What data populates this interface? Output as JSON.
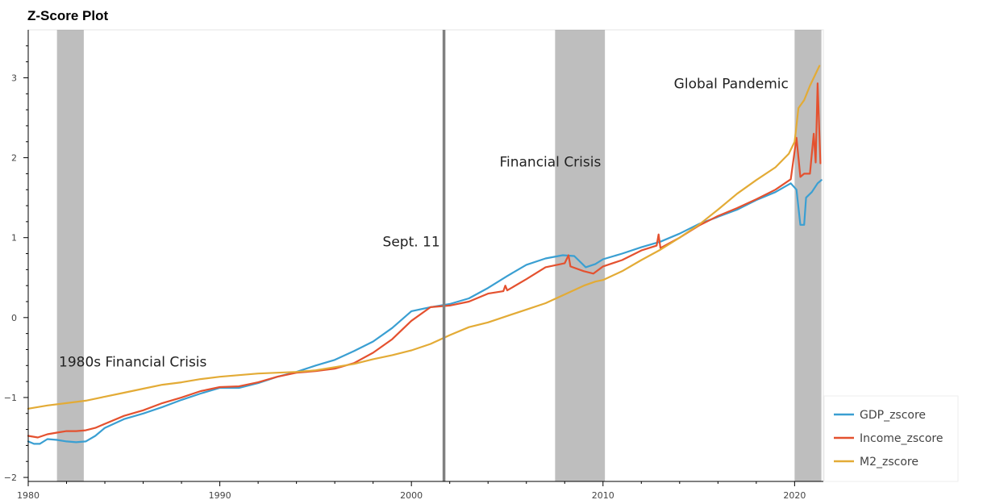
{
  "chart_data": {
    "type": "line",
    "title": "Z-Score Plot",
    "xlabel": "",
    "ylabel": "",
    "xlim": [
      1980,
      2021.5
    ],
    "ylim": [
      -2.05,
      3.6
    ],
    "x_ticks": [
      1980,
      1990,
      2000,
      2010,
      2020
    ],
    "x_tick_labels": [
      "1980",
      "1990",
      "2000",
      "2010",
      "2020"
    ],
    "y_ticks": [
      -2,
      -1,
      0,
      1,
      2,
      3
    ],
    "y_tick_labels": [
      "−2",
      "−1",
      "0",
      "1",
      "2",
      "3"
    ],
    "grid": false,
    "legend_position": "bottom-right",
    "shaded_regions": [
      {
        "x0": 1981.5,
        "x1": 1982.9
      },
      {
        "x0": 2007.5,
        "x1": 2010.1
      },
      {
        "x0": 2020.0,
        "x1": 2021.4
      }
    ],
    "vertical_lines": [
      {
        "x": 2001.7
      }
    ],
    "annotations": [
      {
        "text": "1980s Financial Crisis",
        "x": 1981.6,
        "y": -0.55
      },
      {
        "text": "Sept. 11",
        "x": 1998.5,
        "y": 0.95
      },
      {
        "text": "Financial Crisis",
        "x": 2004.6,
        "y": 1.95
      },
      {
        "text": "Global Pandemic",
        "x": 2013.7,
        "y": 2.93
      }
    ],
    "series": [
      {
        "name": "GDP_zscore",
        "color": "#3a9fd2",
        "x": [
          1980,
          1980.3,
          1980.6,
          1981,
          1981.5,
          1982,
          1982.5,
          1983,
          1983.5,
          1984,
          1985,
          1986,
          1987,
          1988,
          1989,
          1990,
          1991,
          1992,
          1993,
          1994,
          1995,
          1996,
          1997,
          1998,
          1999,
          2000,
          2001,
          2002,
          2003,
          2004,
          2005,
          2006,
          2007,
          2007.9,
          2008.5,
          2009.1,
          2009.6,
          2010,
          2011,
          2012,
          2013,
          2014,
          2015,
          2016,
          2017,
          2018,
          2019,
          2019.8,
          2020.1,
          2020.3,
          2020.5,
          2020.6,
          2020.9,
          2021.2,
          2021.4
        ],
        "y": [
          -1.55,
          -1.58,
          -1.58,
          -1.52,
          -1.53,
          -1.55,
          -1.56,
          -1.55,
          -1.48,
          -1.38,
          -1.27,
          -1.2,
          -1.12,
          -1.03,
          -0.95,
          -0.88,
          -0.88,
          -0.82,
          -0.74,
          -0.68,
          -0.6,
          -0.53,
          -0.42,
          -0.3,
          -0.13,
          0.08,
          0.13,
          0.17,
          0.24,
          0.37,
          0.52,
          0.66,
          0.74,
          0.78,
          0.77,
          0.63,
          0.67,
          0.73,
          0.8,
          0.88,
          0.95,
          1.05,
          1.17,
          1.26,
          1.35,
          1.47,
          1.57,
          1.68,
          1.6,
          1.16,
          1.16,
          1.5,
          1.57,
          1.68,
          1.72
        ]
      },
      {
        "name": "Income_zscore",
        "color": "#e4512f",
        "x": [
          1980,
          1980.5,
          1981,
          1981.5,
          1982,
          1982.5,
          1983,
          1983.5,
          1984,
          1985,
          1986,
          1987,
          1988,
          1989,
          1990,
          1991,
          1992,
          1993,
          1994,
          1995,
          1996,
          1997,
          1998,
          1999,
          2000,
          2001,
          2002,
          2003,
          2004,
          2004.8,
          2004.9,
          2005,
          2006,
          2007,
          2008,
          2008.2,
          2008.3,
          2009,
          2009.5,
          2010,
          2011,
          2012,
          2012.8,
          2012.9,
          2013,
          2014,
          2015,
          2016,
          2017,
          2018,
          2019,
          2019.8,
          2020.1,
          2020.3,
          2020.5,
          2020.8,
          2021.0,
          2021.1,
          2021.2,
          2021.35
        ],
        "y": [
          -1.48,
          -1.5,
          -1.46,
          -1.44,
          -1.42,
          -1.42,
          -1.41,
          -1.38,
          -1.33,
          -1.23,
          -1.16,
          -1.07,
          -1.0,
          -0.92,
          -0.87,
          -0.86,
          -0.81,
          -0.74,
          -0.69,
          -0.67,
          -0.64,
          -0.57,
          -0.44,
          -0.27,
          -0.04,
          0.13,
          0.15,
          0.2,
          0.3,
          0.33,
          0.4,
          0.34,
          0.48,
          0.63,
          0.68,
          0.78,
          0.64,
          0.58,
          0.55,
          0.64,
          0.72,
          0.84,
          0.9,
          1.04,
          0.87,
          1.0,
          1.15,
          1.27,
          1.37,
          1.48,
          1.6,
          1.73,
          2.25,
          1.76,
          1.8,
          1.8,
          2.3,
          1.94,
          2.93,
          1.93
        ]
      },
      {
        "name": "M2_zscore",
        "color": "#e3ab36",
        "x": [
          1980,
          1981,
          1982,
          1983,
          1984,
          1985,
          1986,
          1987,
          1988,
          1989,
          1990,
          1991,
          1992,
          1993,
          1994,
          1995,
          1996,
          1997,
          1998,
          1999,
          2000,
          2001,
          2002,
          2003,
          2004,
          2005,
          2006,
          2007,
          2008,
          2009,
          2009.6,
          2010,
          2011,
          2012,
          2013,
          2014,
          2015,
          2016,
          2017,
          2018,
          2019,
          2019.7,
          2020.0,
          2020.2,
          2020.5,
          2020.8,
          2021.0,
          2021.3
        ],
        "y": [
          -1.14,
          -1.1,
          -1.07,
          -1.04,
          -0.99,
          -0.94,
          -0.89,
          -0.84,
          -0.81,
          -0.77,
          -0.74,
          -0.72,
          -0.7,
          -0.69,
          -0.68,
          -0.66,
          -0.62,
          -0.58,
          -0.52,
          -0.47,
          -0.41,
          -0.33,
          -0.22,
          -0.12,
          -0.06,
          0.02,
          0.1,
          0.18,
          0.29,
          0.4,
          0.45,
          0.47,
          0.58,
          0.72,
          0.85,
          1.0,
          1.16,
          1.35,
          1.55,
          1.72,
          1.88,
          2.05,
          2.2,
          2.62,
          2.72,
          2.9,
          3.0,
          3.15
        ]
      }
    ]
  }
}
